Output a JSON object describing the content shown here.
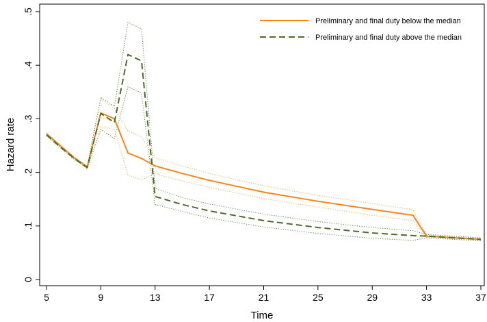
{
  "chart_data": {
    "type": "line",
    "title": "",
    "xlabel": "Time",
    "ylabel": "Hazard rate",
    "xlim": [
      5,
      37
    ],
    "ylim": [
      0,
      0.5
    ],
    "xticks": [
      5,
      9,
      13,
      17,
      21,
      25,
      29,
      33,
      37
    ],
    "yticks": [
      0,
      0.1,
      0.2,
      0.3,
      0.4,
      0.5
    ],
    "xtick_labels": [
      "5",
      "9",
      "13",
      "17",
      "21",
      "25",
      "29",
      "33",
      "37"
    ],
    "ytick_labels": [
      "0",
      ".1",
      ".2",
      ".3",
      ".4",
      ".5"
    ],
    "grid": false,
    "legend_position": "top-right",
    "series": [
      {
        "name": "Preliminary and final duty below the median",
        "color": "#f58518",
        "style": "solid",
        "x": [
          5,
          6,
          7,
          8,
          9,
          10,
          11,
          12,
          13,
          15,
          17,
          21,
          25,
          29,
          32,
          33,
          37
        ],
        "y": [
          0.272,
          0.25,
          0.228,
          0.21,
          0.311,
          0.3,
          0.236,
          0.226,
          0.212,
          0.198,
          0.185,
          0.163,
          0.146,
          0.131,
          0.12,
          0.081,
          0.075
        ],
        "ci_lower": [
          0.27,
          0.248,
          0.226,
          0.208,
          0.285,
          0.28,
          0.195,
          0.186,
          0.197,
          0.184,
          0.172,
          0.151,
          0.135,
          0.12,
          0.11,
          0.079,
          0.073
        ],
        "ci_upper": [
          0.274,
          0.252,
          0.23,
          0.212,
          0.337,
          0.32,
          0.277,
          0.266,
          0.227,
          0.212,
          0.198,
          0.175,
          0.157,
          0.142,
          0.13,
          0.083,
          0.077
        ]
      },
      {
        "name": "Preliminary and final duty above the median",
        "color": "#4c6b2b",
        "style": "dashed",
        "x": [
          5,
          6,
          7,
          8,
          9,
          10,
          11,
          12,
          13,
          15,
          17,
          21,
          25,
          29,
          32,
          33,
          37
        ],
        "y": [
          0.27,
          0.248,
          0.227,
          0.209,
          0.31,
          0.293,
          0.42,
          0.408,
          0.155,
          0.14,
          0.128,
          0.11,
          0.097,
          0.087,
          0.082,
          0.081,
          0.075
        ],
        "ci_lower": [
          0.268,
          0.246,
          0.225,
          0.207,
          0.28,
          0.263,
          0.36,
          0.348,
          0.14,
          0.127,
          0.115,
          0.098,
          0.086,
          0.077,
          0.073,
          0.078,
          0.072
        ],
        "ci_upper": [
          0.272,
          0.25,
          0.229,
          0.211,
          0.34,
          0.323,
          0.48,
          0.468,
          0.17,
          0.153,
          0.141,
          0.122,
          0.108,
          0.097,
          0.091,
          0.084,
          0.078
        ]
      }
    ]
  }
}
